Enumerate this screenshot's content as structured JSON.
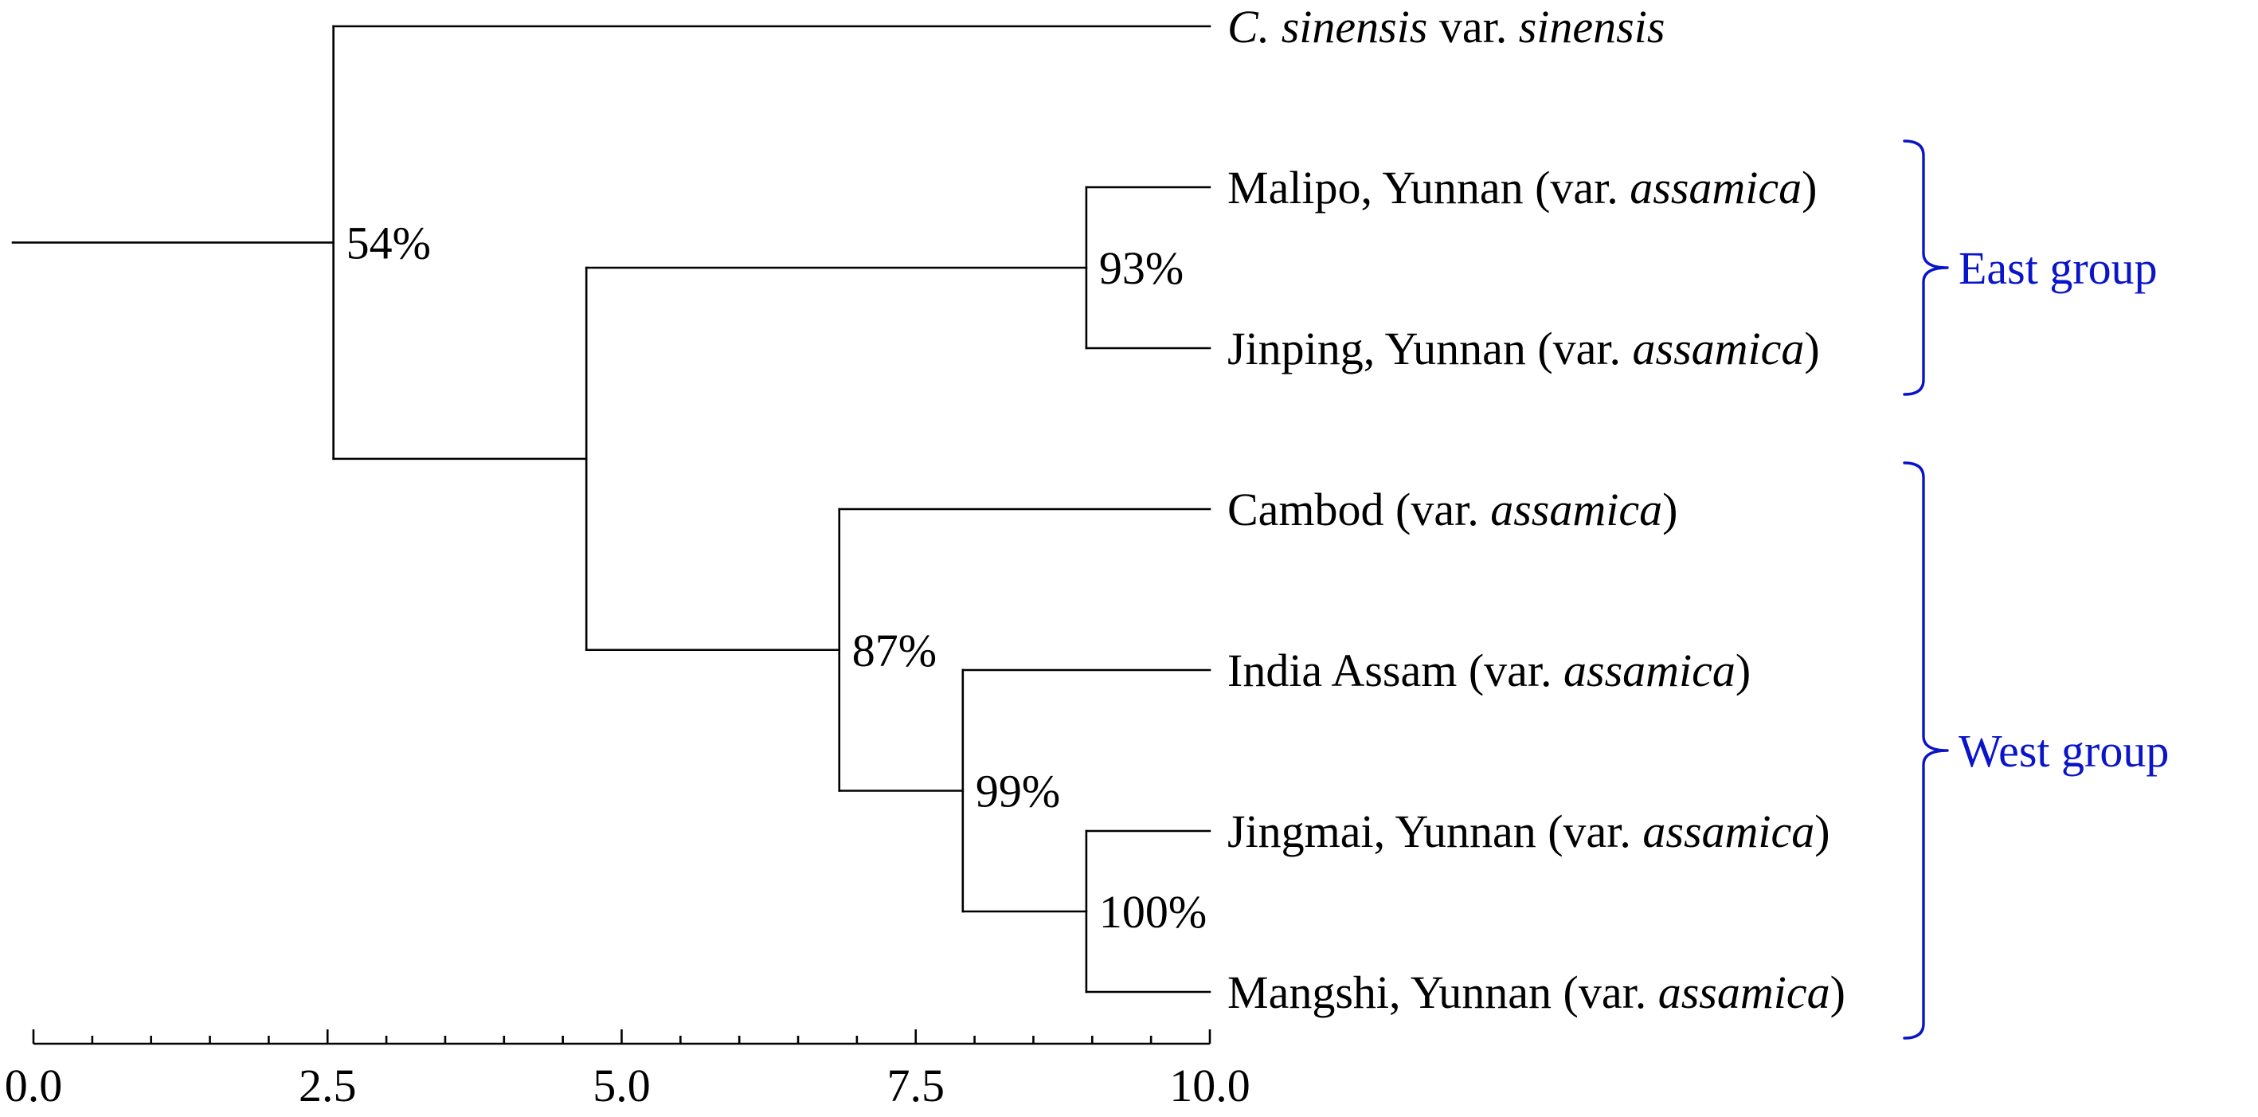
{
  "colors": {
    "ink": "#000000",
    "group": "#0a14c8"
  },
  "tree": {
    "root": 0.0,
    "nodes": [
      {
        "id": "n54",
        "x": 2.55,
        "support": "54%"
      },
      {
        "id": "nEW",
        "x": 4.7
      },
      {
        "id": "n93",
        "x": 8.95,
        "support": "93%"
      },
      {
        "id": "n87",
        "x": 6.85,
        "support": "87%"
      },
      {
        "id": "n99",
        "x": 7.9,
        "support": "99%"
      },
      {
        "id": "n100",
        "x": 8.95,
        "support": "100%"
      }
    ],
    "leaves": [
      {
        "id": "L0",
        "x": 10.0,
        "parts": [
          {
            "t": "C.",
            "i": true
          },
          {
            "t": " "
          },
          {
            "t": "sinensis",
            "i": true
          },
          {
            "t": " var. "
          },
          {
            "t": "sinensis",
            "i": true
          }
        ]
      },
      {
        "id": "L1",
        "x": 10.0,
        "parts": [
          {
            "t": "Malipo, Yunnan (var. "
          },
          {
            "t": "assamica",
            "i": true
          },
          {
            "t": ")"
          }
        ]
      },
      {
        "id": "L2",
        "x": 10.0,
        "parts": [
          {
            "t": "Jinping, Yunnan (var. "
          },
          {
            "t": "assamica",
            "i": true
          },
          {
            "t": ")"
          }
        ]
      },
      {
        "id": "L3",
        "x": 10.0,
        "parts": [
          {
            "t": "Cambod (var. "
          },
          {
            "t": "assamica",
            "i": true
          },
          {
            "t": ")"
          }
        ]
      },
      {
        "id": "L4",
        "x": 10.0,
        "parts": [
          {
            "t": "India Assam (var. "
          },
          {
            "t": "assamica",
            "i": true
          },
          {
            "t": ")"
          }
        ]
      },
      {
        "id": "L5",
        "x": 10.0,
        "parts": [
          {
            "t": "Jingmai, Yunnan (var. "
          },
          {
            "t": "assamica",
            "i": true
          },
          {
            "t": ")"
          }
        ]
      },
      {
        "id": "L6",
        "x": 10.0,
        "parts": [
          {
            "t": "Mangshi, Yunnan (var. "
          },
          {
            "t": "assamica",
            "i": true
          },
          {
            "t": ")"
          }
        ]
      }
    ],
    "edges": [
      [
        "root",
        "n54"
      ],
      [
        "n54",
        "L0"
      ],
      [
        "n54",
        "nEW"
      ],
      [
        "nEW",
        "n93"
      ],
      [
        "nEW",
        "n87"
      ],
      [
        "n93",
        "L1"
      ],
      [
        "n93",
        "L2"
      ],
      [
        "n87",
        "L3"
      ],
      [
        "n87",
        "n99"
      ],
      [
        "n99",
        "L4"
      ],
      [
        "n99",
        "n100"
      ],
      [
        "n100",
        "L5"
      ],
      [
        "n100",
        "L6"
      ]
    ]
  },
  "groups": [
    {
      "label": "East group",
      "from": "L1",
      "to": "L2"
    },
    {
      "label": "West group",
      "from": "L3",
      "to": "L6"
    }
  ],
  "axis": {
    "min": 0.0,
    "max": 10.0,
    "major_ticks": [
      0.0,
      2.5,
      5.0,
      7.5,
      10.0
    ],
    "tick_labels": [
      "0.0",
      "2.5",
      "5.0",
      "7.5",
      "10.0"
    ],
    "minor_step": 0.5
  }
}
